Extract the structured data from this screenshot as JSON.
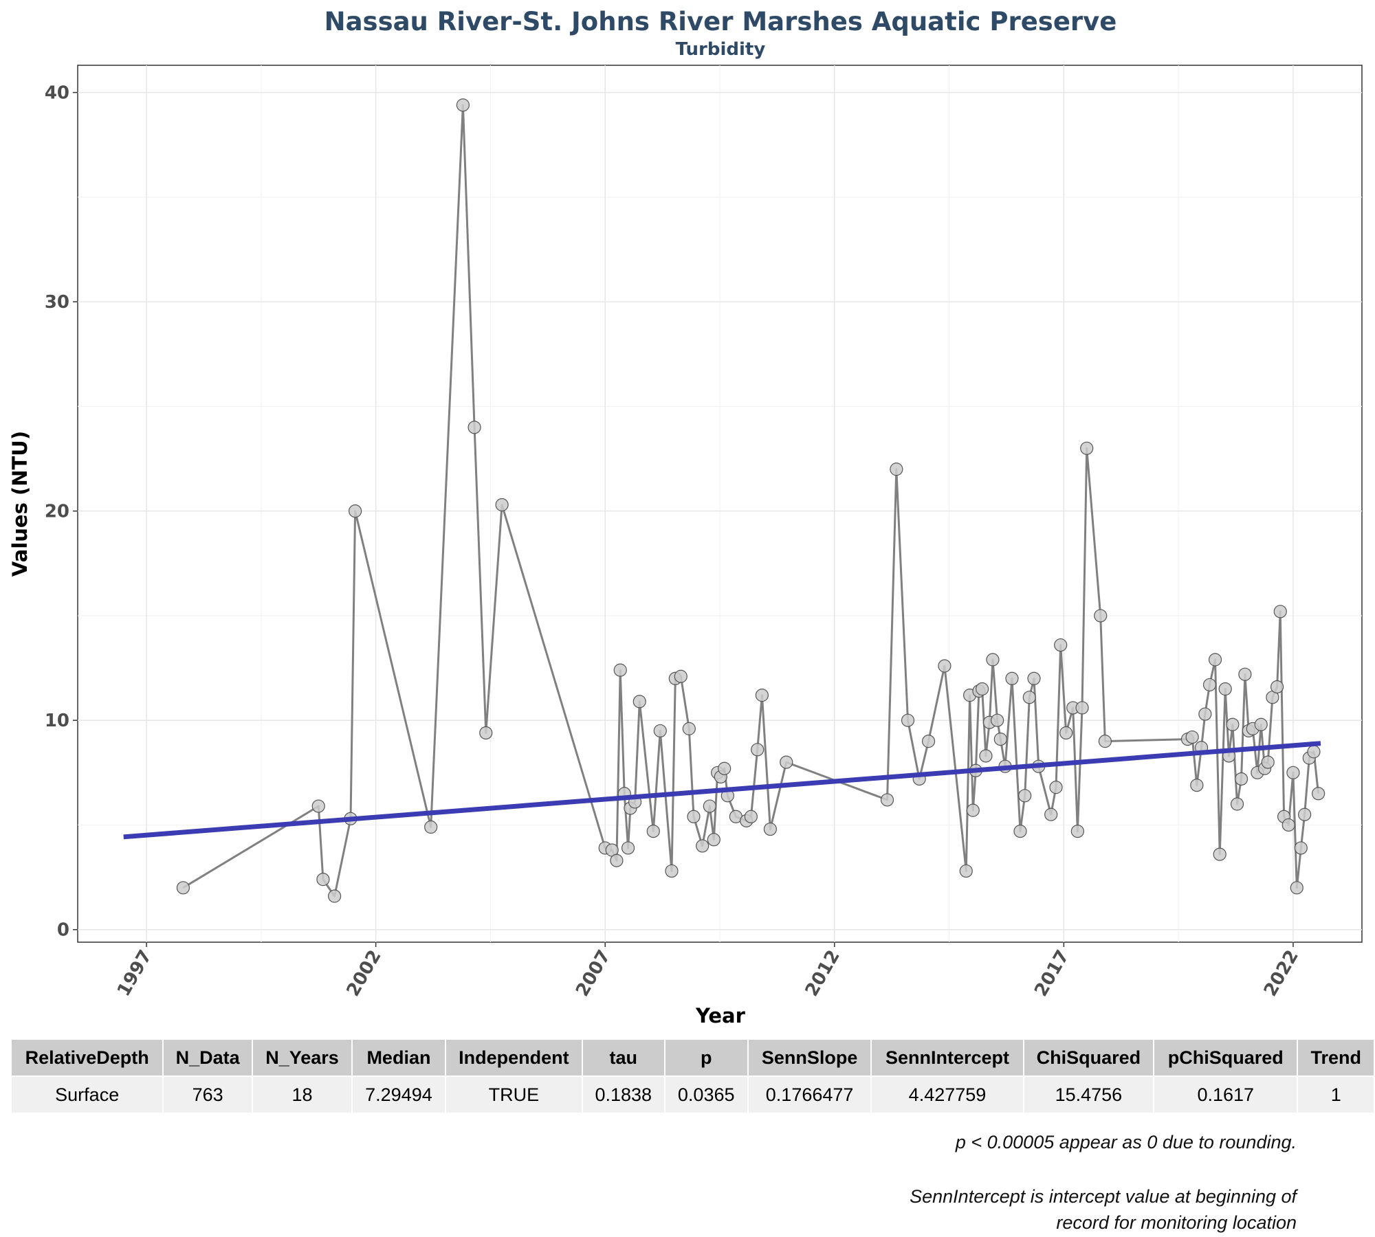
{
  "chart_data": {
    "type": "line",
    "title": "Nassau River-St. Johns River Marshes Aquatic Preserve",
    "subtitle": "Turbidity",
    "xlabel": "Year",
    "ylabel": "Values (NTU)",
    "xlim": [
      1995.5,
      2023.5
    ],
    "ylim": [
      -0.6,
      41.3
    ],
    "x_ticks": [
      1997,
      2002,
      2007,
      2012,
      2017,
      2022
    ],
    "x_tick_labels": [
      "1997",
      "2002",
      "2007",
      "2012",
      "2017",
      "2022"
    ],
    "y_ticks": [
      0,
      10,
      20,
      30,
      40
    ],
    "y_tick_labels": [
      "0",
      "10",
      "20",
      "30",
      "40"
    ],
    "grid": true,
    "line_color": "#808080",
    "point_fill": "#cccccc",
    "trend_color": "#3b3bb3",
    "series": [
      {
        "x": [
          1997.8,
          2000.75,
          2000.85,
          2001.1,
          2001.45,
          2001.55,
          2003.2,
          2003.9,
          2004.15,
          2004.4,
          2004.75,
          2007.0,
          2007.15,
          2007.25,
          2007.33,
          2007.42,
          2007.5,
          2007.55,
          2007.65,
          2007.75,
          2008.05,
          2008.2,
          2008.45,
          2008.53,
          2008.65,
          2008.83,
          2008.93,
          2009.12,
          2009.28,
          2009.37,
          2009.45,
          2009.52,
          2009.6,
          2009.67,
          2009.85,
          2010.08,
          2010.18,
          2010.32,
          2010.42,
          2010.6,
          2010.95,
          2013.15,
          2013.35,
          2013.6,
          2013.85,
          2014.05,
          2014.4,
          2014.87,
          2014.95,
          2015.02,
          2015.08,
          2015.15,
          2015.22,
          2015.3,
          2015.38,
          2015.45,
          2015.55,
          2015.62,
          2015.72,
          2015.87,
          2016.05,
          2016.15,
          2016.25,
          2016.35,
          2016.45,
          2016.72,
          2016.83,
          2016.93,
          2017.05,
          2017.2,
          2017.3,
          2017.4,
          2017.5,
          2017.8,
          2017.9,
          2019.7,
          2019.8,
          2019.9,
          2020.0,
          2020.08,
          2020.18,
          2020.3,
          2020.4,
          2020.52,
          2020.6,
          2020.68,
          2020.78,
          2020.87,
          2020.95,
          2021.03,
          2021.12,
          2021.22,
          2021.3,
          2021.38,
          2021.45,
          2021.55,
          2021.65,
          2021.72,
          2021.8,
          2021.9,
          2022.0,
          2022.08,
          2022.17,
          2022.25,
          2022.35,
          2022.45,
          2022.55
        ],
        "values": [
          2.0,
          5.9,
          2.4,
          1.6,
          5.3,
          20.0,
          4.9,
          39.4,
          24.0,
          9.4,
          20.3,
          3.9,
          3.8,
          3.3,
          12.4,
          6.5,
          3.9,
          5.8,
          6.1,
          10.9,
          4.7,
          9.5,
          2.8,
          12.0,
          12.1,
          9.6,
          5.4,
          4.0,
          5.9,
          4.3,
          7.5,
          7.3,
          7.7,
          6.4,
          5.4,
          5.2,
          5.4,
          8.6,
          11.2,
          4.8,
          8.0,
          6.2,
          22.0,
          10.0,
          7.2,
          9.0,
          12.6,
          2.8,
          11.2,
          5.7,
          7.6,
          11.4,
          11.5,
          8.3,
          9.9,
          12.9,
          10.0,
          9.1,
          7.8,
          12.0,
          4.7,
          6.4,
          11.1,
          12.0,
          7.8,
          5.5,
          6.8,
          13.6,
          9.4,
          10.6,
          4.7,
          10.6,
          23.0,
          15.0,
          9.0,
          9.1,
          9.2,
          6.9,
          8.7,
          10.3,
          11.7,
          12.9,
          3.6,
          11.5,
          8.3,
          9.8,
          6.0,
          7.2,
          12.2,
          9.5,
          9.6,
          7.5,
          9.8,
          7.7,
          8.0,
          11.1,
          11.6,
          15.2,
          5.4,
          5.0,
          7.5,
          2.0,
          3.9,
          5.5,
          8.2,
          8.5,
          6.5
        ]
      }
    ],
    "trend_line": {
      "x": [
        1996.5,
        2022.6
      ],
      "y": [
        4.43,
        8.9
      ]
    }
  },
  "stats_table": {
    "headers": [
      "RelativeDepth",
      "N_Data",
      "N_Years",
      "Median",
      "Independent",
      "tau",
      "p",
      "SennSlope",
      "SennIntercept",
      "ChiSquared",
      "pChiSquared",
      "Trend"
    ],
    "row": [
      "Surface",
      "763",
      "18",
      "7.29494",
      "TRUE",
      "0.1838",
      "0.0365",
      "0.1766477",
      "4.427759",
      "15.4756",
      "0.1617",
      "1"
    ]
  },
  "notes": {
    "rounding": "p < 0.00005 appear as 0 due to rounding.",
    "intercept_line1": "SennIntercept is intercept value at beginning of",
    "intercept_line2": "record for monitoring location"
  }
}
